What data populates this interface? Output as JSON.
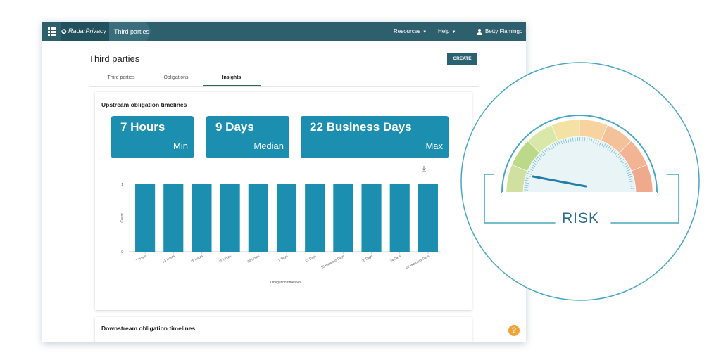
{
  "topbar": {
    "brand_mark": "✪",
    "brand_name": "RadarPrivacy",
    "breadcrumb": "Third parties",
    "nav_resources": "Resources",
    "nav_help": "Help",
    "user_name": "Betty Flamingo"
  },
  "page": {
    "title": "Third parties",
    "create_label": "CREATE",
    "tabs": [
      {
        "label": "Third parties",
        "active": false
      },
      {
        "label": "Obligations",
        "active": false
      },
      {
        "label": "Insights",
        "active": true
      }
    ]
  },
  "upstream": {
    "title": "Upstream obligation timelines",
    "stats": [
      {
        "value": "7 Hours",
        "label": "Min"
      },
      {
        "value": "9 Days",
        "label": "Median"
      },
      {
        "value": "22 Business Days",
        "label": "Max"
      }
    ]
  },
  "chart_data": {
    "type": "bar",
    "categories": [
      "7 Hours",
      "13 Hours",
      "15 Hours",
      "25 Hours",
      "30 Hours",
      "9 Days",
      "13 Days",
      "10 Business Days",
      "20 Days",
      "24 Days",
      "22 Business Days"
    ],
    "values": [
      1,
      1,
      1,
      1,
      1,
      1,
      1,
      1,
      1,
      1,
      1
    ],
    "title": "",
    "xlabel": "Obligation timelines",
    "ylabel": "Count",
    "ylim": [
      0,
      1
    ],
    "yticks": [
      "1",
      "0"
    ],
    "bar_color": "#1c8fb0"
  },
  "downstream": {
    "title": "Downstream obligation timelines"
  },
  "help_label": "?",
  "risk": {
    "label": "RISK",
    "needle_level": 0.08,
    "segment_colors": [
      "#cfe0a0",
      "#bcd98a",
      "#d9e7a8",
      "#f4e2a4",
      "#f7d3a0",
      "#f3c19a",
      "#f2b494",
      "#efa98c"
    ]
  },
  "colors": {
    "topbar": "#2e5f6d",
    "accent": "#1c8fb0",
    "risk_ring": "#4aa7c4"
  }
}
